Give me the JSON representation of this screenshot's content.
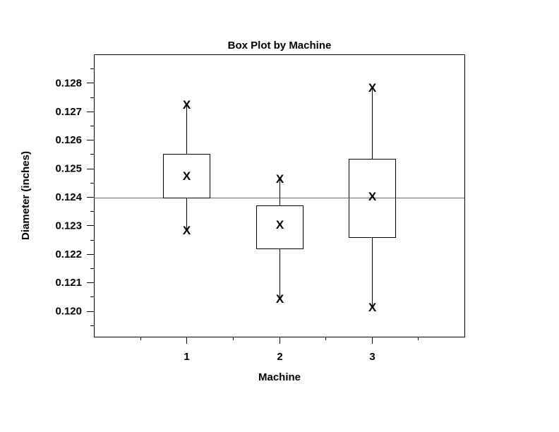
{
  "chart_data": {
    "type": "box",
    "title": "Box Plot by Machine",
    "xlabel": "Machine",
    "ylabel": "Diameter (inches)",
    "categories": [
      "1",
      "2",
      "3"
    ],
    "xlim": [
      0,
      4
    ],
    "ylim": [
      0.1191,
      0.129
    ],
    "yticks": [
      {
        "value": 0.128,
        "label": "0.128"
      },
      {
        "value": 0.127,
        "label": "0.127"
      },
      {
        "value": 0.126,
        "label": "0.126"
      },
      {
        "value": 0.125,
        "label": "0.125"
      },
      {
        "value": 0.124,
        "label": "0.124"
      },
      {
        "value": 0.123,
        "label": "0.123"
      },
      {
        "value": 0.122,
        "label": "0.122"
      },
      {
        "value": 0.121,
        "label": "0.121"
      },
      {
        "value": 0.12,
        "label": "0.120"
      }
    ],
    "minor_y_step": 0.0005,
    "reference_line": 0.12398,
    "marker_symbol": "X",
    "boxes": [
      {
        "category": "1",
        "min": 0.12284,
        "q1": 0.12398,
        "median": 0.12474,
        "q3": 0.1255,
        "max": 0.12724
      },
      {
        "category": "2",
        "min": 0.12044,
        "q1": 0.1222,
        "median": 0.12304,
        "q3": 0.1237,
        "max": 0.12464
      },
      {
        "category": "3",
        "min": 0.12014,
        "q1": 0.1226,
        "median": 0.12402,
        "q3": 0.12534,
        "max": 0.12784
      }
    ]
  }
}
